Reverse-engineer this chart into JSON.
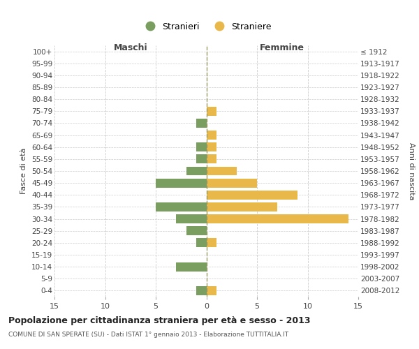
{
  "age_groups": [
    "0-4",
    "5-9",
    "10-14",
    "15-19",
    "20-24",
    "25-29",
    "30-34",
    "35-39",
    "40-44",
    "45-49",
    "50-54",
    "55-59",
    "60-64",
    "65-69",
    "70-74",
    "75-79",
    "80-84",
    "85-89",
    "90-94",
    "95-99",
    "100+"
  ],
  "birth_years": [
    "2008-2012",
    "2003-2007",
    "1998-2002",
    "1993-1997",
    "1988-1992",
    "1983-1987",
    "1978-1982",
    "1973-1977",
    "1968-1972",
    "1963-1967",
    "1958-1962",
    "1953-1957",
    "1948-1952",
    "1943-1947",
    "1938-1942",
    "1933-1937",
    "1928-1932",
    "1923-1927",
    "1918-1922",
    "1913-1917",
    "≤ 1912"
  ],
  "maschi": [
    1,
    0,
    3,
    0,
    1,
    2,
    3,
    5,
    0,
    5,
    2,
    1,
    1,
    0,
    1,
    0,
    0,
    0,
    0,
    0,
    0
  ],
  "femmine": [
    1,
    0,
    0,
    0,
    1,
    0,
    14,
    7,
    9,
    5,
    3,
    1,
    1,
    1,
    0,
    1,
    0,
    0,
    0,
    0,
    0
  ],
  "male_color": "#7A9E5F",
  "female_color": "#E8B84B",
  "title": "Popolazione per cittadinanza straniera per età e sesso - 2013",
  "subtitle": "COMUNE DI SAN SPERATE (SU) - Dati ISTAT 1° gennaio 2013 - Elaborazione TUTTITALIA.IT",
  "xlabel_left": "Maschi",
  "xlabel_right": "Femmine",
  "ylabel_left": "Fasce di età",
  "ylabel_right": "Anni di nascita",
  "xlim": 15,
  "legend_stranieri": "Stranieri",
  "legend_straniere": "Straniere",
  "background_color": "#ffffff",
  "grid_color": "#cccccc",
  "bar_height": 0.75
}
